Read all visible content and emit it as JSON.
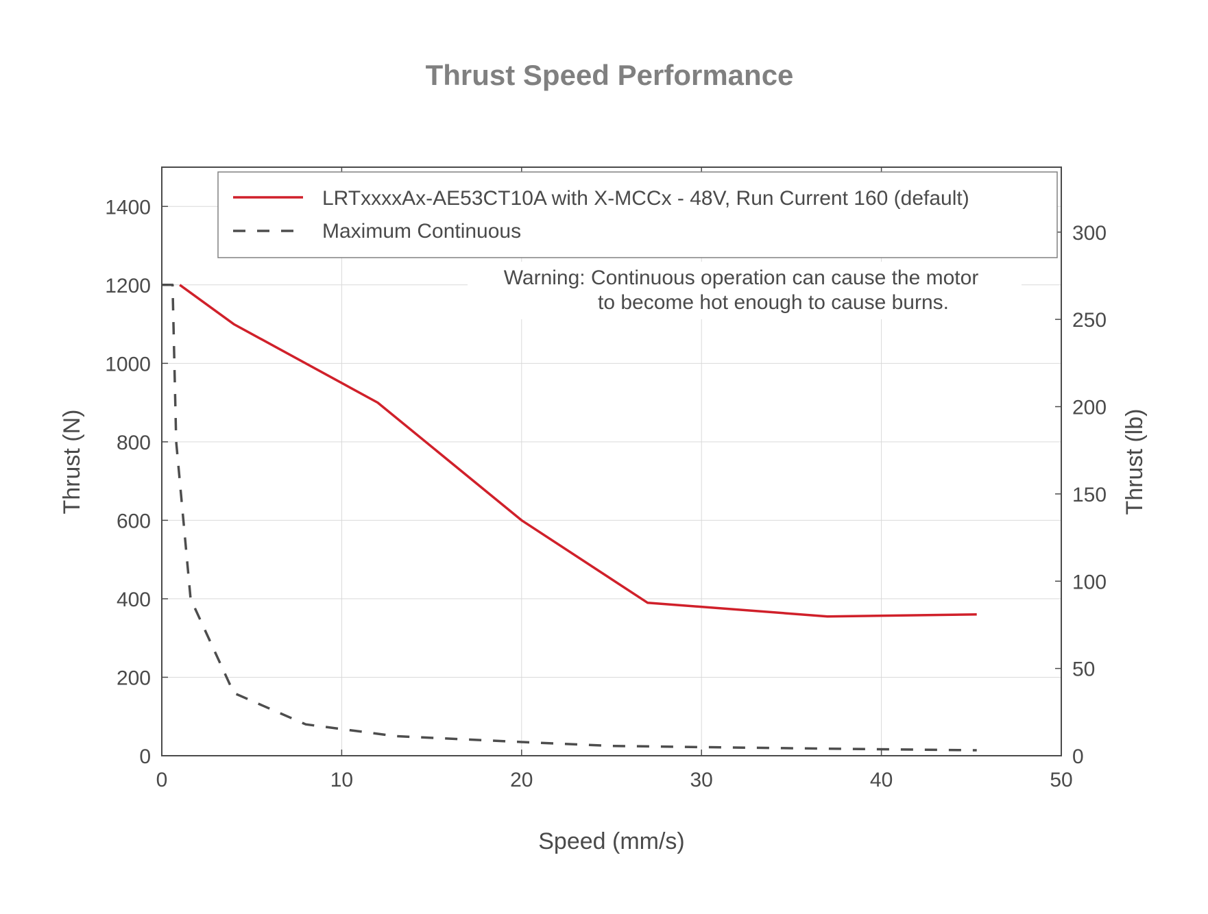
{
  "chart_data": {
    "type": "line",
    "title": "Thrust Speed Performance",
    "xlabel": "Speed (mm/s)",
    "ylabel": "Thrust (N)",
    "y2label": "Thrust (lb)",
    "xlim": [
      0,
      50
    ],
    "ylim": [
      0,
      1500
    ],
    "y2lim": [
      0,
      337.2
    ],
    "xticks": [
      0,
      10,
      20,
      30,
      40,
      50
    ],
    "yticks": [
      0,
      200,
      400,
      600,
      800,
      1000,
      1200,
      1400
    ],
    "y2ticks": [
      0,
      50,
      100,
      150,
      200,
      250,
      300
    ],
    "grid": true,
    "legend_position": "top-right",
    "series": [
      {
        "name": "LRTxxxxAx-AE53CT10A with X-MCCx - 48V, Run Current 160 (default)",
        "style": "solid",
        "color": "#d0202a",
        "x": [
          1,
          4,
          12,
          20,
          27,
          37,
          45.3
        ],
        "y": [
          1200,
          1100,
          900,
          600,
          390,
          355,
          360
        ]
      },
      {
        "name": "Maximum Continuous",
        "style": "dashed",
        "color": "#4d4d4d",
        "x": [
          0,
          0.6,
          0.8,
          1.6,
          4,
          8,
          13,
          20,
          25,
          30,
          37,
          45.3
        ],
        "y": [
          1200,
          1200,
          800,
          400,
          160,
          80,
          50,
          35,
          25,
          22,
          18,
          14
        ]
      }
    ],
    "annotation": {
      "lines": [
        "Warning: Continuous operation can cause the motor",
        "to become hot enough to cause burns."
      ]
    }
  }
}
